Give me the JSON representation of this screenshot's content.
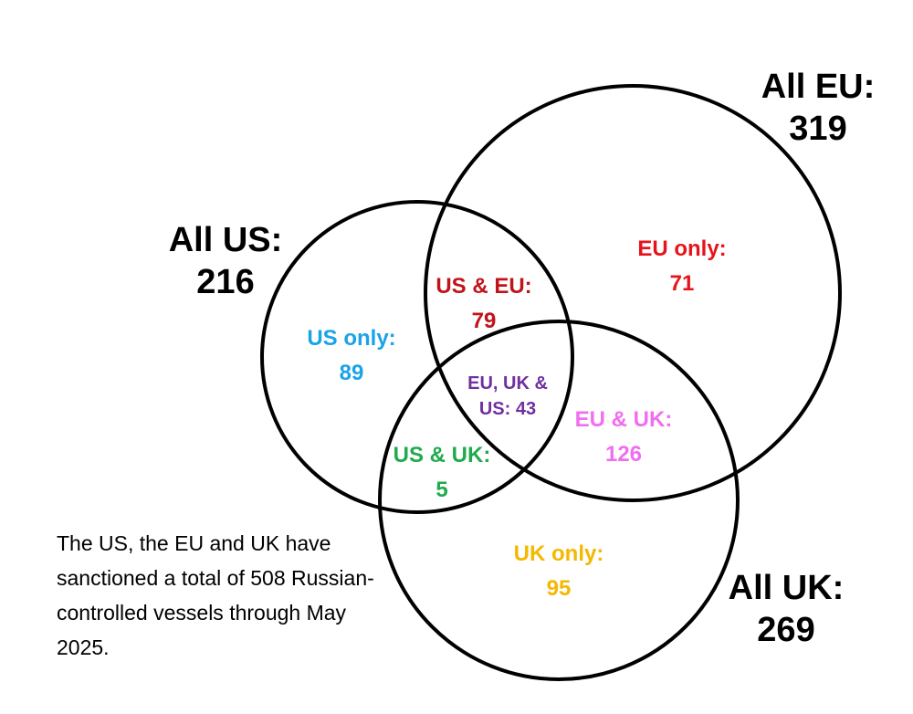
{
  "venn": {
    "sets": {
      "us": {
        "title": "All US:",
        "total": "216"
      },
      "eu": {
        "title": "All EU:",
        "total": "319"
      },
      "uk": {
        "title": "All UK:",
        "total": "269"
      }
    },
    "regions": {
      "us_only": {
        "label": "US only:",
        "value": "89",
        "color": "#1aa3e8"
      },
      "eu_only": {
        "label": "EU only:",
        "value": "71",
        "color": "#e8131a"
      },
      "uk_only": {
        "label": "UK only:",
        "value": "95",
        "color": "#f5b800"
      },
      "us_eu": {
        "label": "US & EU:",
        "value": "79",
        "color": "#c0141b"
      },
      "us_uk": {
        "label": "US & UK:",
        "value": "5",
        "color": "#1fab4c"
      },
      "eu_uk": {
        "label": "EU & UK:",
        "value": "126",
        "color": "#f06ef0"
      },
      "all_three": {
        "label_line1": "EU, UK &",
        "label_line2": "US: 43",
        "color": "#7030a0"
      }
    },
    "note": "The US, the EU and UK have sanctioned a total of 508 Russian-controlled vessels through May 2025."
  }
}
